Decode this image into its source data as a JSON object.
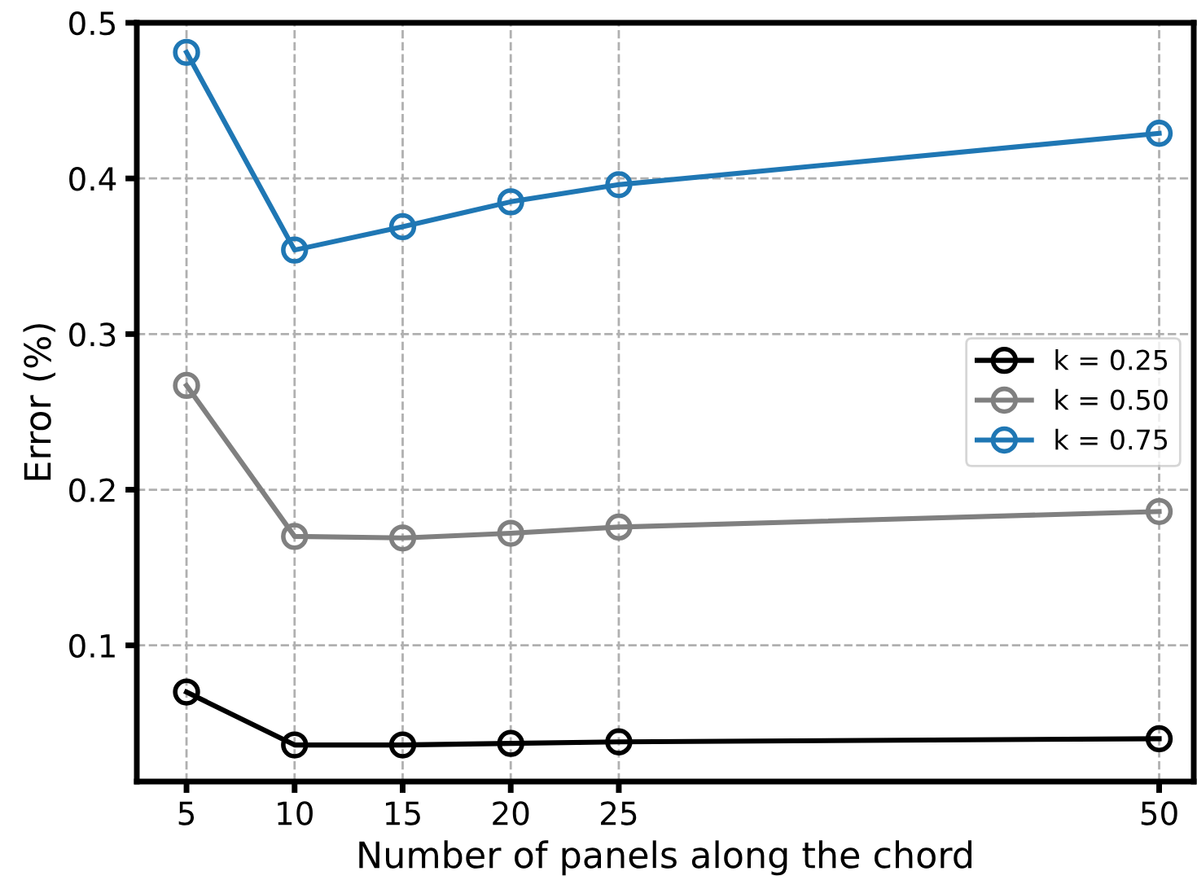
{
  "chart_data": {
    "type": "line",
    "xlabel": "Number of panels along the chord",
    "ylabel": "Error (%)",
    "x": [
      5,
      10,
      15,
      20,
      25,
      50
    ],
    "series": [
      {
        "name": "k = 0.25",
        "color": "#000000",
        "values": [
          0.07,
          0.036,
          0.036,
          0.037,
          0.038,
          0.04
        ]
      },
      {
        "name": "k = 0.50",
        "color": "#808080",
        "values": [
          0.267,
          0.17,
          0.169,
          0.172,
          0.176,
          0.186
        ]
      },
      {
        "name": "k = 0.75",
        "color": "#1f77b4",
        "values": [
          0.481,
          0.354,
          0.369,
          0.385,
          0.396,
          0.429
        ]
      }
    ],
    "xlim": [
      2.7,
      51.6
    ],
    "ylim": [
      0.0125,
      0.5
    ],
    "xticks": [
      5,
      10,
      15,
      20,
      25,
      50
    ],
    "yticks": [
      0.1,
      0.2,
      0.3,
      0.4,
      0.5
    ],
    "grid": true,
    "legend": "center right",
    "marker": "circle",
    "line_style": "solid"
  }
}
